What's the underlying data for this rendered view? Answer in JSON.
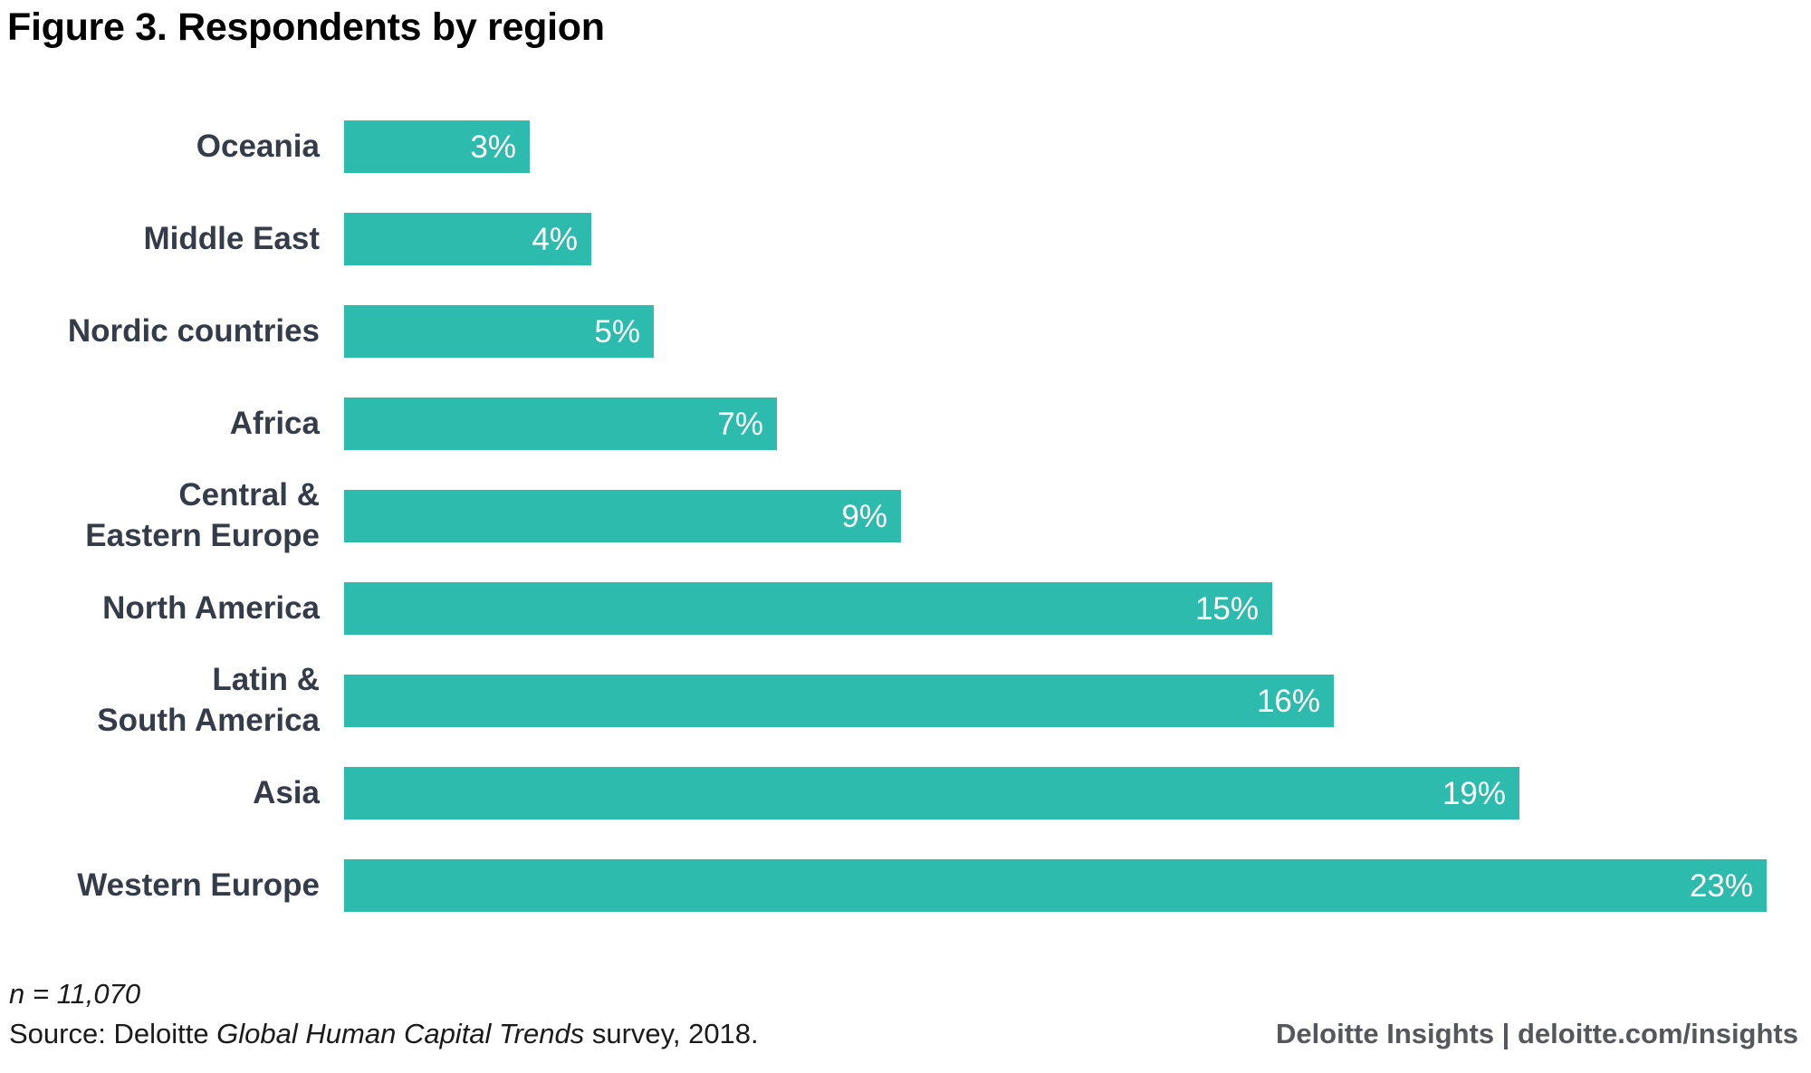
{
  "title": "Figure 3. Respondents by region",
  "colors": {
    "bar_teal": "#2CBBAC",
    "label_dark_navy": "#343B49",
    "value_text_white": "#FFFFFF",
    "brand_gray": "#54575C",
    "footnote_black": "#1A1A1A",
    "title_black": "#000000",
    "background": "#FFFFFF"
  },
  "chart_data": {
    "type": "bar",
    "orientation": "horizontal",
    "title": "Figure 3. Respondents by region",
    "categories": [
      "Oceania",
      "Middle East",
      "Nordic countries",
      "Africa",
      "Central &\nEastern Europe",
      "North America",
      "Latin &\nSouth America",
      "Asia",
      "Western Europe"
    ],
    "values": [
      3,
      4,
      5,
      7,
      9,
      15,
      16,
      19,
      23
    ],
    "value_labels": [
      "3%",
      "4%",
      "5%",
      "7%",
      "9%",
      "15%",
      "16%",
      "19%",
      "23%"
    ],
    "value_unit": "%",
    "xlim": [
      0,
      23
    ],
    "grid": false,
    "legend": false,
    "axis_shown": false,
    "bar_color": "#2CBBAC",
    "value_label_position": "inside-right",
    "sample_size_note": "n = 11,070"
  },
  "footer": {
    "n_label": "n = 11,070",
    "source_prefix": "Source: Deloitte ",
    "source_italic": "Global Human Capital Trends",
    "source_suffix": " survey, 2018.",
    "brand": "Deloitte Insights | deloitte.com/insights"
  }
}
